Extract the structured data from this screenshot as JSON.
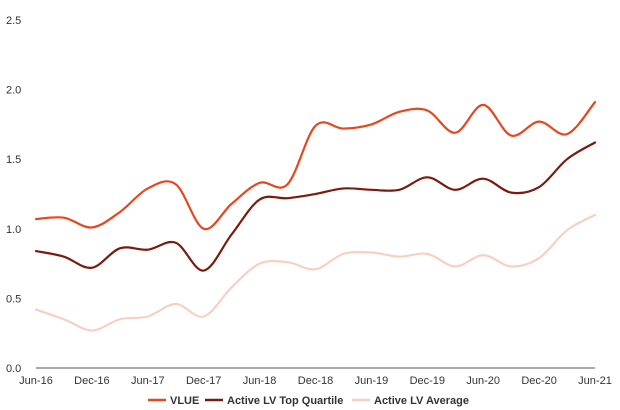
{
  "chart_data": {
    "type": "line",
    "title": "",
    "xlabel": "",
    "ylabel": "",
    "ylim": [
      0,
      2.5
    ],
    "yticks": [
      "0.0",
      "0.5",
      "1.0",
      "1.5",
      "2.0",
      "2.5"
    ],
    "xticks": [
      "Jun-16",
      "Dec-16",
      "Jun-17",
      "Dec-17",
      "Jun-18",
      "Dec-18",
      "Jun-19",
      "Dec-19",
      "Jun-20",
      "Dec-20",
      "Jun-21"
    ],
    "grid": false,
    "legend_position": "bottom-center",
    "series": [
      {
        "name": "VLUE",
        "color": "#e8461e",
        "values": [
          1.07,
          1.08,
          1.01,
          1.12,
          1.29,
          1.32,
          1.0,
          1.18,
          1.33,
          1.32,
          1.74,
          1.72,
          1.75,
          1.84,
          1.85,
          1.69,
          1.89,
          1.67,
          1.77,
          1.68,
          1.91
        ]
      },
      {
        "name": "Active LV Top Quartile",
        "color": "#7b1a0e",
        "values": [
          0.84,
          0.8,
          0.72,
          0.86,
          0.85,
          0.9,
          0.7,
          0.96,
          1.21,
          1.22,
          1.25,
          1.29,
          1.28,
          1.28,
          1.37,
          1.28,
          1.36,
          1.26,
          1.3,
          1.5,
          1.62
        ]
      },
      {
        "name": "Active LV Average",
        "color": "#f8d0c2",
        "values": [
          0.42,
          0.35,
          0.27,
          0.35,
          0.37,
          0.46,
          0.37,
          0.58,
          0.75,
          0.76,
          0.71,
          0.82,
          0.83,
          0.8,
          0.82,
          0.73,
          0.81,
          0.73,
          0.79,
          0.99,
          1.1
        ]
      }
    ]
  }
}
